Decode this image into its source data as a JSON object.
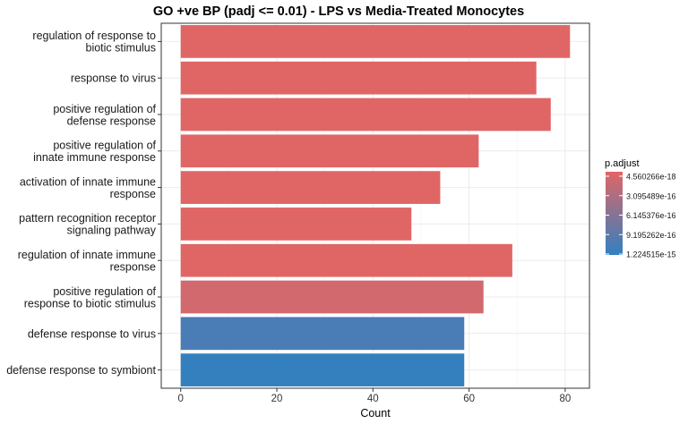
{
  "chart_data": {
    "type": "bar",
    "orientation": "horizontal",
    "title": "GO +ve BP (padj <= 0.01) - LPS vs Media-Treated Monocytes",
    "xlabel": "Count",
    "ylabel": "",
    "xlim": [
      -4.05,
      85.05
    ],
    "xticks": [
      0,
      20,
      40,
      60,
      80
    ],
    "grid": true,
    "categories": [
      "regulation of response to\nbiotic stimulus",
      "response to virus",
      "positive regulation of\ndefense response",
      "positive regulation of\ninnate immune response",
      "activation of innate immune\nresponse",
      "pattern recognition receptor\nsignaling pathway",
      "regulation of innate immune\nresponse",
      "positive regulation of\nresponse to biotic stimulus",
      "defense response to virus",
      "defense response to symbiont"
    ],
    "values": [
      81,
      74,
      77,
      62,
      54,
      48,
      69,
      63,
      59,
      59
    ],
    "bar_colors": [
      "#e06666",
      "#e06666",
      "#e06666",
      "#e06666",
      "#e06666",
      "#e06666",
      "#e06666",
      "#d1696f",
      "#4a7db5",
      "#3480bf"
    ],
    "legend": {
      "title": "p.adjust",
      "position": "right",
      "labels": [
        "4.560266e-18",
        "3.095489e-16",
        "6.145376e-16",
        "9.195262e-16",
        "1.224515e-15"
      ],
      "colors": [
        "#e06666",
        "#3280c0"
      ]
    }
  }
}
